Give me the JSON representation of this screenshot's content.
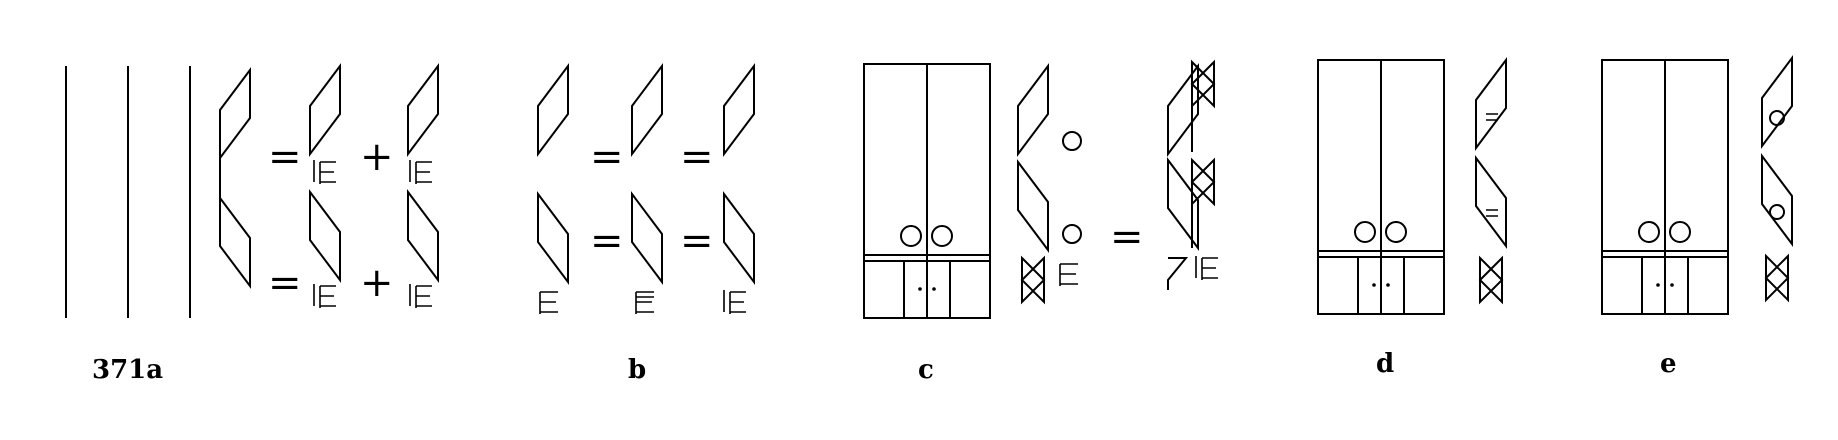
{
  "labels": {
    "a": "371a",
    "b": "b",
    "c": "c",
    "d": "d",
    "e": "e"
  },
  "symbols": {
    "equals": "=",
    "plus": "+"
  }
}
